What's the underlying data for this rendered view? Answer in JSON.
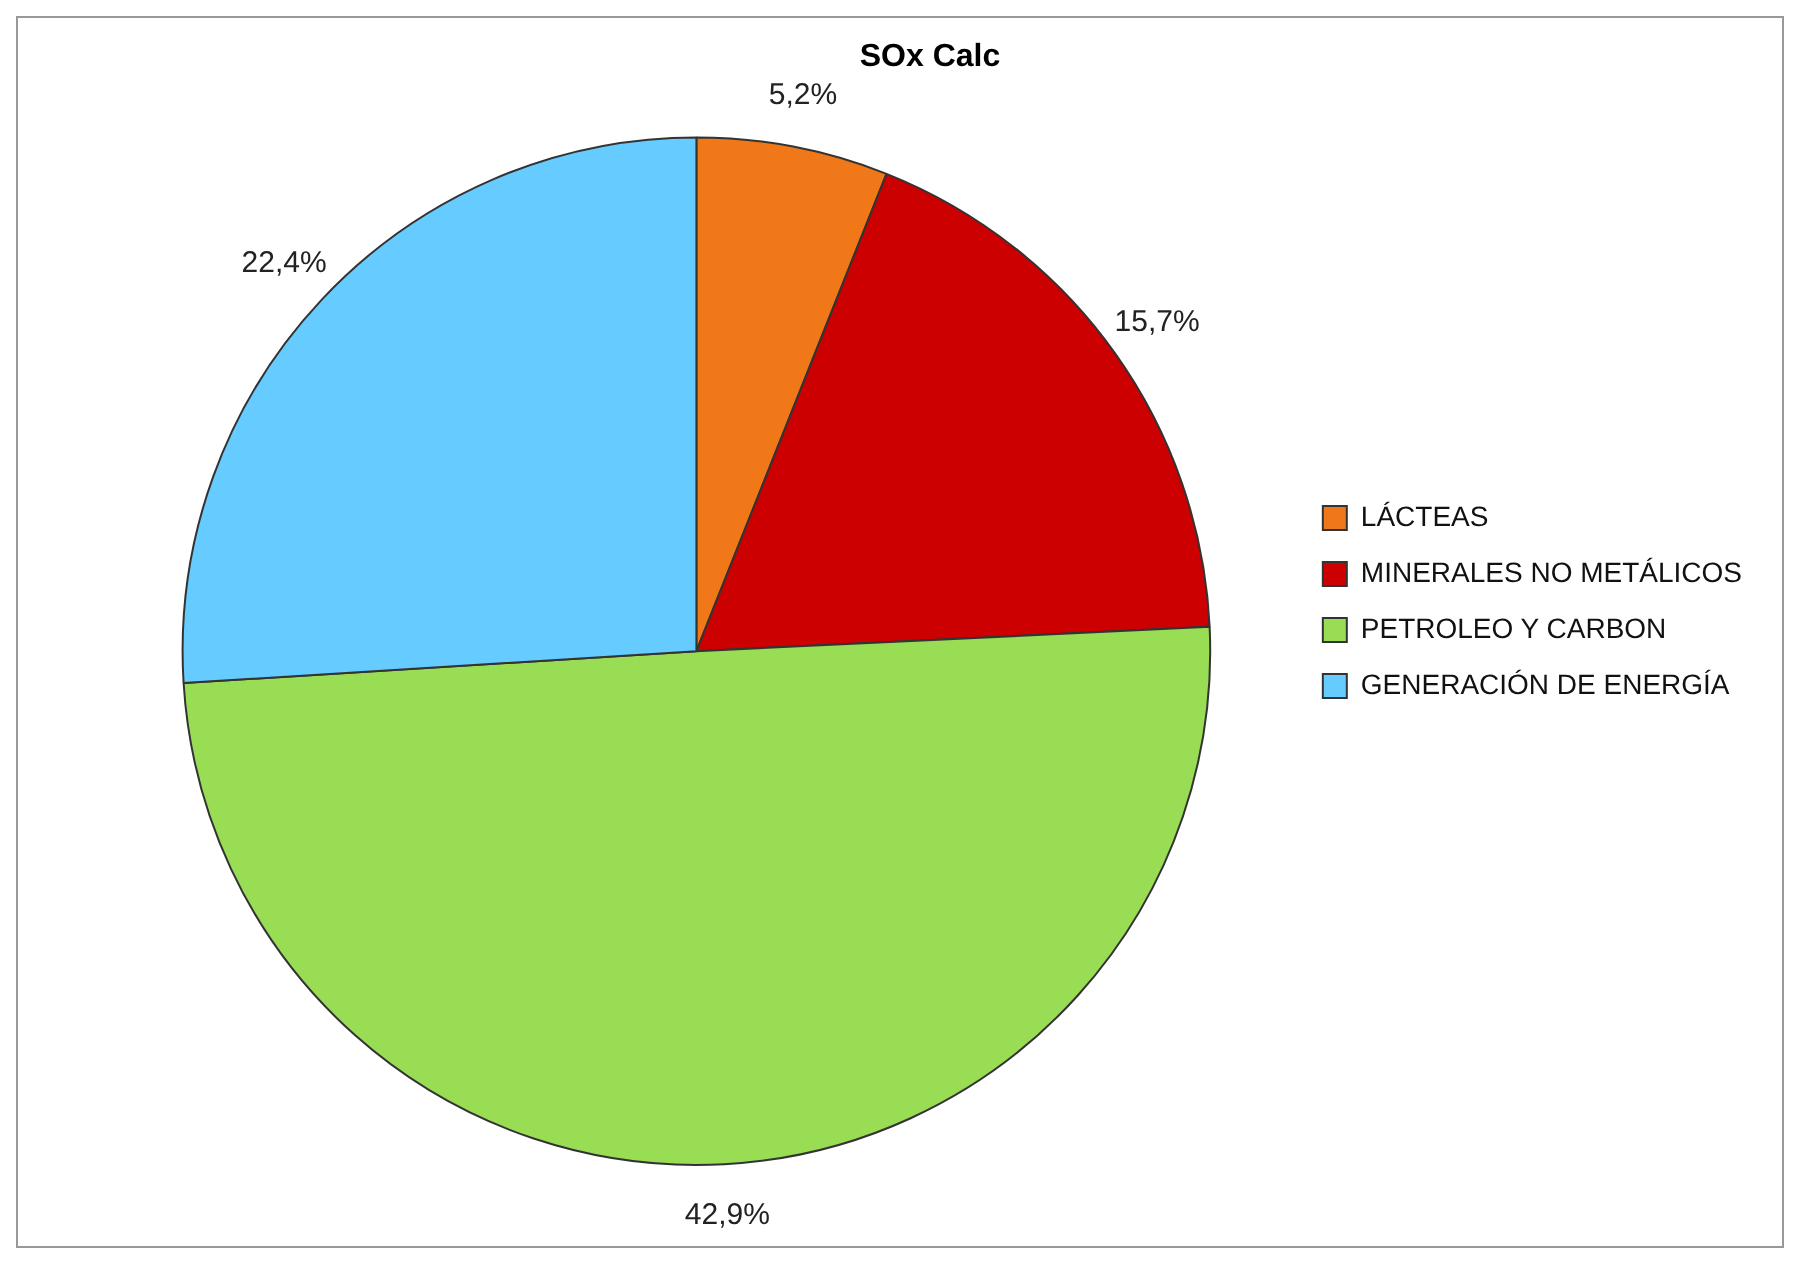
{
  "chart_data": {
    "type": "pie",
    "title": "SOx Calc",
    "categories": [
      "LÁCTEAS",
      "MINERALES NO METÁLICOS",
      "PETROLEO Y CARBON",
      "GENERACIÓN DE ENERGÍA"
    ],
    "values": [
      5.2,
      15.7,
      42.9,
      22.4
    ],
    "colors": [
      "#f07818",
      "#cc0000",
      "#99dd55",
      "#66ccff"
    ],
    "value_labels": [
      "5,2%",
      "15,7%",
      "42,9%",
      "22,4%"
    ],
    "legend": "right"
  }
}
